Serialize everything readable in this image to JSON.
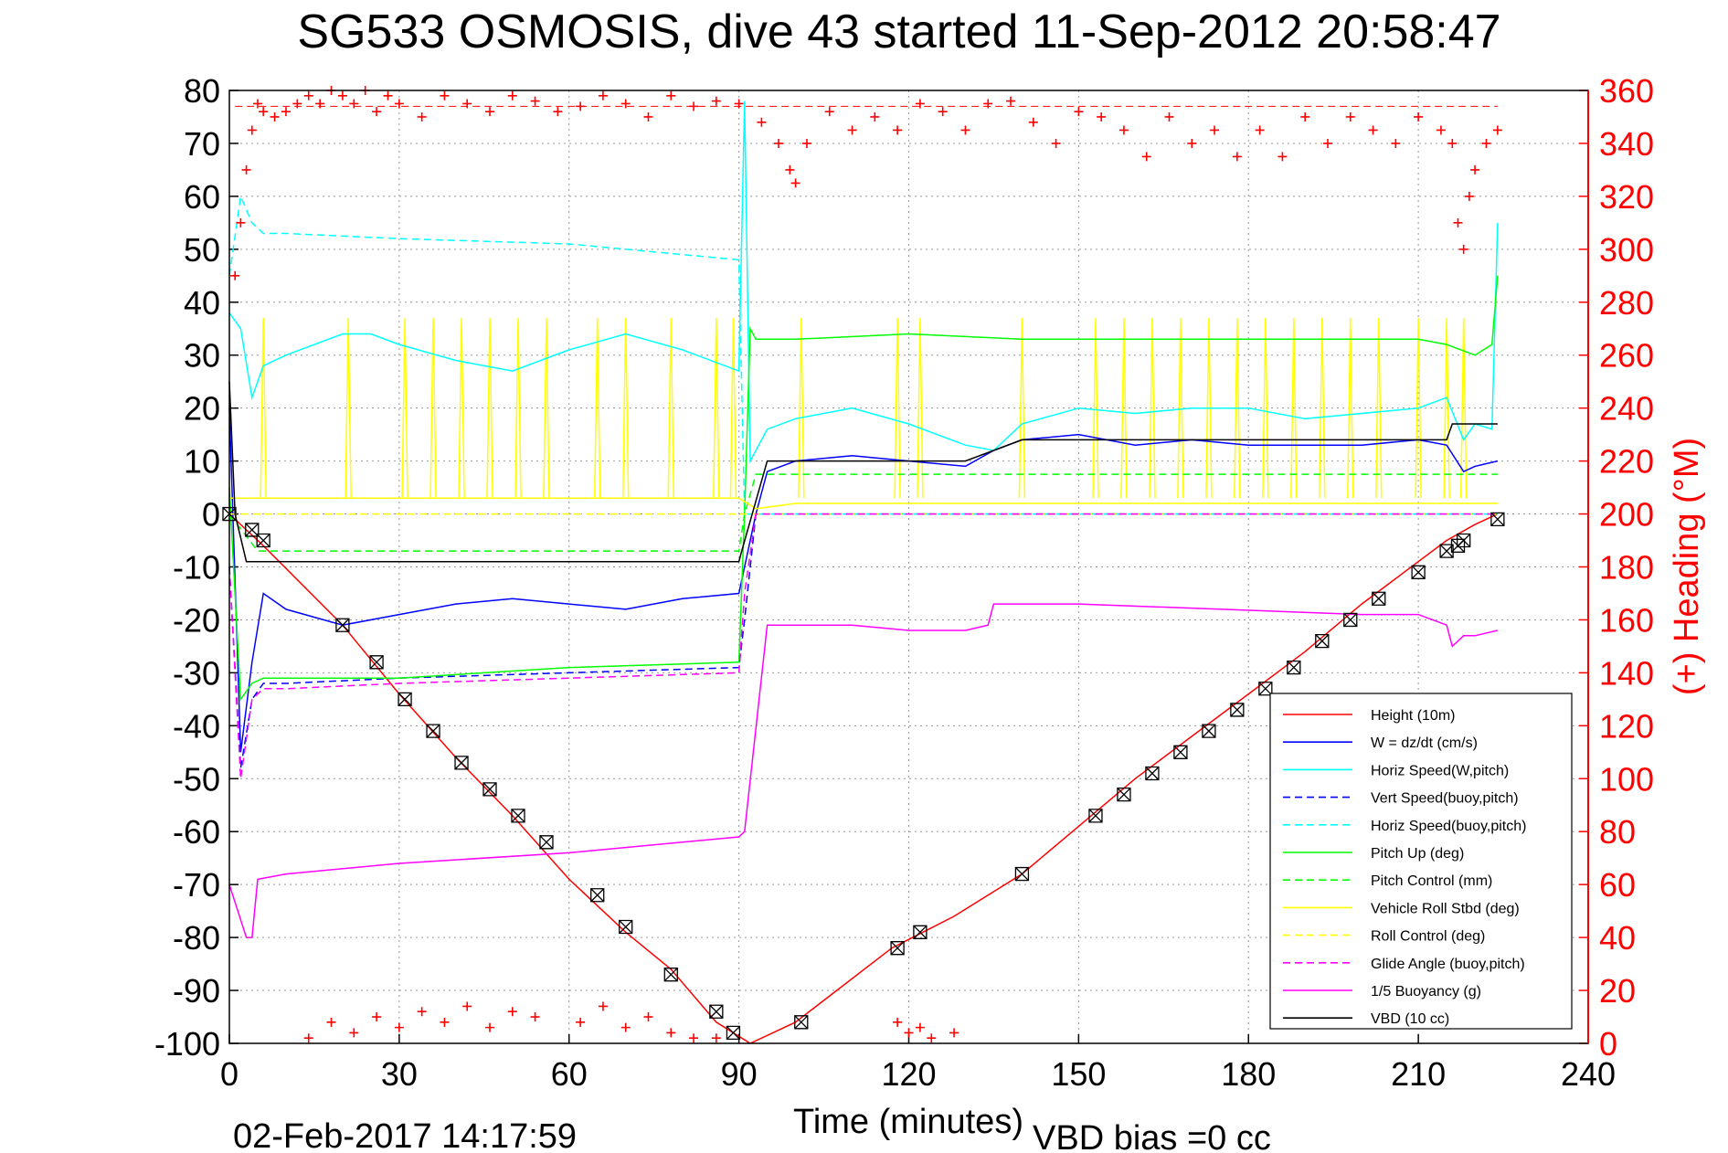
{
  "chart_data": {
    "type": "line",
    "title": "SG533 OSMOSIS, dive 43 started 11-Sep-2012 20:58:47",
    "xlabel": "Time (minutes)",
    "ylabel": "",
    "y2label": "(+) Heading (°M)",
    "footer_left": "02-Feb-2017 14:17:59",
    "footer_right": "VBD bias =0 cc",
    "xlim": [
      0,
      240
    ],
    "ylim": [
      -100,
      80
    ],
    "y2lim": [
      0,
      360
    ],
    "xticks": [
      "0",
      "30",
      "60",
      "90",
      "120",
      "150",
      "180",
      "210",
      "240"
    ],
    "yticks": [
      "80",
      "70",
      "60",
      "50",
      "40",
      "30",
      "20",
      "10",
      "0",
      "-10",
      "-20",
      "-30",
      "-40",
      "-50",
      "-60",
      "-70",
      "-80",
      "-90",
      "-100"
    ],
    "y2ticks": [
      "360",
      "340",
      "320",
      "300",
      "280",
      "260",
      "240",
      "220",
      "200",
      "180",
      "160",
      "140",
      "120",
      "100",
      "80",
      "60",
      "40",
      "20",
      "0"
    ],
    "grid": true,
    "legend_position": "bottom-right",
    "colors": {
      "red": "#ff0000",
      "blue": "#0000ff",
      "cyan": "#00ffff",
      "green": "#00ff00",
      "yellow": "#ffff00",
      "magenta": "#ff00ff",
      "black": "#000000"
    },
    "series": [
      {
        "name": "Height (10m)",
        "color": "#ff0000",
        "style": "solid",
        "x": [
          0,
          6,
          20,
          30,
          40,
          50,
          60,
          70,
          78,
          86,
          92,
          100,
          117,
          128,
          140,
          150,
          160,
          170,
          180,
          190,
          200,
          210,
          215,
          220,
          224
        ],
        "y": [
          0,
          -6,
          -21,
          -34,
          -46,
          -57,
          -69,
          -79,
          -86,
          -96,
          -100,
          -96,
          -82,
          -76,
          -68,
          -59,
          -50,
          -42,
          -34,
          -26,
          -17,
          -9,
          -5,
          -2,
          0
        ]
      },
      {
        "name": "W = dz/dt (cm/s)",
        "color": "#0000ff",
        "style": "solid",
        "x": [
          0,
          2,
          4,
          6,
          10,
          20,
          30,
          40,
          50,
          60,
          70,
          80,
          90,
          91,
          93,
          95,
          100,
          110,
          120,
          130,
          135,
          140,
          150,
          160,
          170,
          180,
          190,
          200,
          210,
          215,
          218,
          220,
          224
        ],
        "y": [
          20,
          -45,
          -28,
          -15,
          -18,
          -21,
          -19,
          -17,
          -16,
          -17,
          -18,
          -16,
          -15,
          -10,
          0,
          8,
          10,
          11,
          10,
          9,
          12,
          14,
          15,
          13,
          14,
          13,
          13,
          13,
          14,
          13,
          8,
          9,
          10
        ]
      },
      {
        "name": "Horiz Speed(W,pitch)",
        "color": "#00ffff",
        "style": "solid",
        "x": [
          0,
          2,
          4,
          6,
          10,
          20,
          25,
          30,
          40,
          50,
          60,
          70,
          80,
          90,
          91,
          92,
          95,
          100,
          110,
          120,
          130,
          135,
          140,
          150,
          160,
          170,
          180,
          190,
          200,
          210,
          215,
          218,
          220,
          223,
          224
        ],
        "y": [
          38,
          35,
          22,
          28,
          30,
          34,
          34,
          32,
          29,
          27,
          31,
          34,
          31,
          27,
          78,
          10,
          16,
          18,
          20,
          17,
          13,
          12,
          17,
          20,
          19,
          20,
          20,
          18,
          19,
          20,
          22,
          14,
          17,
          16,
          55
        ]
      },
      {
        "name": "Vert Speed(buoy,pitch)",
        "color": "#0000ff",
        "style": "dashed",
        "x": [
          0,
          2,
          4,
          6,
          10,
          30,
          60,
          90,
          91,
          93,
          224
        ],
        "y": [
          -10,
          -48,
          -35,
          -32,
          -32,
          -31,
          -30,
          -29,
          -20,
          0,
          0
        ]
      },
      {
        "name": "Horiz Speed(buoy,pitch)",
        "color": "#00ffff",
        "style": "dashed",
        "x": [
          0,
          2,
          4,
          6,
          10,
          30,
          60,
          70,
          90,
          91,
          93,
          224
        ],
        "y": [
          45,
          60,
          55,
          53,
          53,
          52,
          51,
          50,
          48,
          0,
          0,
          0
        ]
      },
      {
        "name": "Pitch Up (deg)",
        "color": "#00ff00",
        "style": "solid",
        "x": [
          0,
          2,
          4,
          6,
          10,
          30,
          60,
          90,
          91,
          92,
          93,
          100,
          120,
          140,
          160,
          180,
          200,
          210,
          215,
          220,
          223,
          224
        ],
        "y": [
          5,
          -35,
          -32,
          -31,
          -31,
          -31,
          -29,
          -28,
          0,
          35,
          33,
          33,
          34,
          33,
          33,
          33,
          33,
          33,
          32,
          30,
          32,
          45
        ]
      },
      {
        "name": "Pitch Control (mm)",
        "color": "#00ff00",
        "style": "dashed",
        "x": [
          0,
          5,
          10,
          90,
          91,
          93,
          224
        ],
        "y": [
          0,
          -7,
          -7,
          -7,
          0,
          7.5,
          7.5
        ]
      },
      {
        "name": "Vehicle Roll Stbd (deg)",
        "color": "#ffff00",
        "style": "solid",
        "x": [
          0,
          5,
          10,
          30,
          60,
          90,
          93,
          100,
          150,
          200,
          220,
          224
        ],
        "y": [
          3,
          3,
          3,
          3,
          3,
          3,
          1,
          2,
          2,
          2,
          2,
          2
        ]
      },
      {
        "name": "Roll Control (deg)",
        "color": "#ffff00",
        "style": "dashed",
        "x": [
          0,
          6,
          90,
          93,
          220,
          224
        ],
        "y": [
          0,
          0,
          0,
          0,
          0,
          0
        ]
      },
      {
        "name": "Glide Angle (buoy,pitch)",
        "color": "#ff00ff",
        "style": "dashed",
        "x": [
          0,
          2,
          4,
          6,
          10,
          30,
          60,
          90,
          91,
          93,
          224
        ],
        "y": [
          -10,
          -50,
          -35,
          -33,
          -33,
          -32,
          -31,
          -30,
          -15,
          0,
          0
        ]
      },
      {
        "name": "1/5 Buoyancy (g)",
        "color": "#ff00ff",
        "style": "solid",
        "x": [
          0,
          3,
          4,
          5,
          10,
          30,
          60,
          90,
          91,
          95,
          100,
          110,
          120,
          130,
          134,
          135,
          150,
          200,
          210,
          215,
          216,
          218,
          220,
          224
        ],
        "y": [
          -70,
          -80,
          -80,
          -69,
          -68,
          -66,
          -64,
          -61,
          -60,
          -21,
          -21,
          -21,
          -22,
          -22,
          -21,
          -17,
          -17,
          -19,
          -19,
          -21,
          -25,
          -23,
          -23,
          -22
        ]
      },
      {
        "name": "VBD (10 cc)",
        "color": "#000000",
        "style": "solid",
        "x": [
          0,
          1,
          3,
          90,
          90.5,
          95,
          130,
          140,
          215,
          216,
          224
        ],
        "y": [
          25,
          0,
          -9,
          -9,
          -7,
          10,
          10,
          14,
          14,
          17,
          17
        ]
      }
    ],
    "heading_markers": {
      "name": "Heading",
      "color": "#ff0000",
      "marker": "+",
      "axis": "right",
      "x": [
        1,
        2,
        3,
        4,
        5,
        6,
        8,
        10,
        12,
        14,
        16,
        18,
        20,
        22,
        24,
        26,
        28,
        30,
        34,
        38,
        42,
        46,
        50,
        54,
        58,
        62,
        66,
        70,
        74,
        78,
        82,
        86,
        90,
        94,
        97,
        99,
        100,
        102,
        106,
        110,
        114,
        118,
        122,
        126,
        130,
        134,
        138,
        142,
        146,
        150,
        154,
        158,
        162,
        166,
        170,
        174,
        178,
        182,
        186,
        190,
        194,
        198,
        202,
        206,
        210,
        214,
        216,
        217,
        218,
        219,
        220,
        222,
        224
      ],
      "y": [
        290,
        310,
        330,
        345,
        355,
        352,
        350,
        352,
        355,
        358,
        355,
        360,
        358,
        355,
        360,
        352,
        358,
        355,
        350,
        358,
        355,
        352,
        358,
        356,
        352,
        354,
        358,
        355,
        350,
        358,
        354,
        356,
        355,
        348,
        340,
        330,
        325,
        340,
        352,
        345,
        350,
        345,
        355,
        352,
        345,
        355,
        356,
        348,
        340,
        352,
        350,
        345,
        335,
        350,
        340,
        345,
        335,
        345,
        335,
        350,
        340,
        350,
        345,
        340,
        350,
        345,
        340,
        310,
        300,
        320,
        330,
        340,
        345
      ],
      "low_x": [
        14,
        18,
        22,
        26,
        30,
        34,
        38,
        42,
        46,
        50,
        54,
        62,
        66,
        70,
        74,
        78,
        82,
        86,
        118,
        120,
        122,
        124,
        128
      ],
      "low_y": [
        2,
        8,
        4,
        10,
        6,
        12,
        8,
        14,
        6,
        12,
        10,
        8,
        14,
        6,
        10,
        4,
        2,
        2,
        8,
        4,
        6,
        2,
        4
      ]
    },
    "height_markers": {
      "color": "#000000",
      "x": [
        0,
        4,
        6,
        20,
        26,
        31,
        36,
        41,
        46,
        51,
        56,
        65,
        70,
        78,
        86,
        89,
        101,
        118,
        122,
        140,
        153,
        158,
        163,
        168,
        173,
        178,
        183,
        188,
        193,
        198,
        203,
        210,
        215,
        217,
        218,
        224
      ],
      "y": [
        0,
        -3,
        -5,
        -21,
        -28,
        -35,
        -41,
        -47,
        -52,
        -57,
        -62,
        -72,
        -78,
        -87,
        -94,
        -98,
        -96,
        -82,
        -79,
        -68,
        -57,
        -53,
        -49,
        -45,
        -41,
        -37,
        -33,
        -29,
        -24,
        -20,
        -16,
        -11,
        -7,
        -6,
        -5,
        -1
      ]
    },
    "roll_spikes": {
      "color": "#ffff00",
      "x": [
        6,
        21,
        31,
        36,
        41,
        46,
        51,
        56,
        65,
        70,
        78,
        86,
        89,
        101,
        118,
        122,
        140,
        153,
        158,
        163,
        168,
        173,
        178,
        183,
        188,
        193,
        198,
        203,
        210,
        215,
        218
      ],
      "top": 37,
      "bottom": 3
    }
  }
}
